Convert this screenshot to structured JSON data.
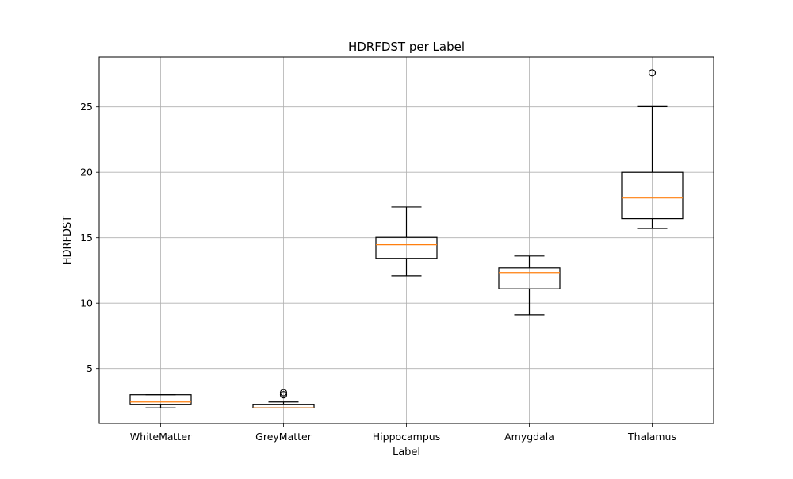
{
  "chart_data": {
    "type": "box",
    "title": "HDRFDST per Label",
    "xlabel": "Label",
    "ylabel": "HDRFDST",
    "ylim": [
      0.8,
      28.8
    ],
    "yticks": [
      5,
      10,
      15,
      20,
      25
    ],
    "grid": true,
    "categories": [
      "WhiteMatter",
      "GreyMatter",
      "Hippocampus",
      "Amygdala",
      "Thalamus"
    ],
    "boxes": [
      {
        "label": "WhiteMatter",
        "whisker_low": 2.0,
        "q1": 2.24,
        "median": 2.45,
        "q3": 3.0,
        "whisker_high": 3.0,
        "outliers": []
      },
      {
        "label": "GreyMatter",
        "whisker_low": 2.0,
        "q1": 2.0,
        "median": 2.0,
        "q3": 2.24,
        "whisker_high": 2.45,
        "outliers": [
          3.0,
          3.16
        ]
      },
      {
        "label": "Hippocampus",
        "whisker_low": 12.08,
        "q1": 13.42,
        "median": 14.46,
        "q3": 15.03,
        "whisker_high": 17.35,
        "outliers": []
      },
      {
        "label": "Amygdala",
        "whisker_low": 9.11,
        "q1": 11.09,
        "median": 12.33,
        "q3": 12.69,
        "whisker_high": 13.6,
        "outliers": []
      },
      {
        "label": "Thalamus",
        "whisker_low": 15.71,
        "q1": 16.46,
        "median": 18.03,
        "q3": 20.0,
        "whisker_high": 25.02,
        "outliers": [
          27.6
        ]
      }
    ],
    "colors": {
      "box": "#000000",
      "median": "#ff7f0e",
      "grid": "#b0b0b0"
    }
  }
}
